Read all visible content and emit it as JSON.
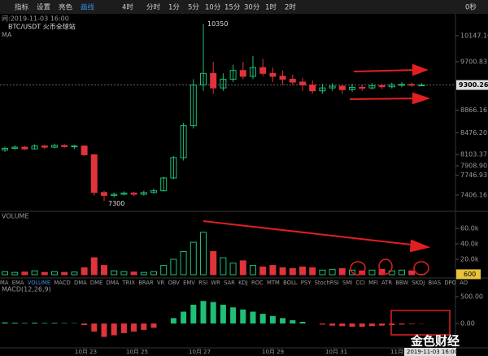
{
  "toolbar": {
    "items": [
      "指标",
      "设置",
      "亮色",
      "画线",
      "4时",
      "分时",
      "1分",
      "5分",
      "10分",
      "15分",
      "30分",
      "1时",
      "2时"
    ],
    "countdown": "0秒"
  },
  "info": {
    "time": "间:2019-11-03 16:00",
    "pair": "BTC/USDT 火币全球站",
    "ma": "MA",
    "volume": "VOLUME",
    "macd": "MACD(12,26,9)"
  },
  "tabs": [
    "MA",
    "EMA",
    "VOLUME",
    "MACD",
    "DMA",
    "DME",
    "DMA",
    "TRIX",
    "BRAR",
    "VR",
    "OBV",
    "EMV",
    "RSI",
    "WR",
    "SAR",
    "KDJ",
    "ROC",
    "MTM",
    "BOLL",
    "PSY",
    "StochRSI",
    "SMI",
    "CCI",
    "MFI",
    "ATR",
    "BBW",
    "SKDJ",
    "BIAS",
    "DPO",
    "AO"
  ],
  "dates": [
    "10月 23",
    "10月 25",
    "10月 27",
    "10月 29",
    "10月 31",
    "11月",
    "2019-11-03 16:00"
  ],
  "watermark": "金色财经",
  "chart_data": {
    "type": "candlestick",
    "up_color": "#1fbf75",
    "down_color": "#e0333a",
    "open": [
      8180,
      8210,
      8230,
      8200,
      8250,
      8230,
      8260,
      8240,
      8250,
      8100,
      7450,
      7400,
      7420,
      7440,
      7420,
      7450,
      7480,
      7700,
      8050,
      8600,
      9300,
      9500,
      9250,
      9400,
      9550,
      9450,
      9600,
      9500,
      9450,
      9400,
      9350,
      9300,
      9200,
      9250,
      9280,
      9220,
      9260,
      9250,
      9290,
      9270,
      9300,
      9310,
      9300
    ],
    "high": [
      8240,
      8260,
      8250,
      8280,
      8270,
      8290,
      8280,
      8270,
      8260,
      8110,
      7480,
      7450,
      7470,
      7460,
      7480,
      7520,
      7720,
      8080,
      8650,
      9400,
      10350,
      9700,
      9500,
      9650,
      9700,
      9800,
      9750,
      9600,
      9550,
      9480,
      9420,
      9380,
      9320,
      9330,
      9300,
      9320,
      9300,
      9330,
      9320,
      9340,
      9350,
      9340,
      9330
    ],
    "low": [
      8150,
      8190,
      8180,
      8190,
      8200,
      8210,
      8220,
      8200,
      8080,
      7400,
      7300,
      7370,
      7400,
      7390,
      7400,
      7430,
      7470,
      7680,
      8000,
      8550,
      9200,
      9150,
      9200,
      9350,
      9400,
      9400,
      9450,
      9350,
      9300,
      9300,
      9200,
      9150,
      9150,
      9200,
      9150,
      9180,
      9200,
      9220,
      9230,
      9240,
      9260,
      9270,
      9280
    ],
    "close": [
      8210,
      8230,
      8200,
      8250,
      8230,
      8260,
      8240,
      8250,
      8100,
      7450,
      7400,
      7420,
      7440,
      7420,
      7450,
      7480,
      7700,
      8050,
      8600,
      9300,
      9500,
      9250,
      9400,
      9550,
      9450,
      9600,
      9500,
      9450,
      9400,
      9350,
      9300,
      9200,
      9250,
      9280,
      9220,
      9260,
      9250,
      9290,
      9270,
      9300,
      9310,
      9300,
      9300
    ],
    "volume": [
      4000,
      3000,
      3500,
      5000,
      3000,
      4000,
      3000,
      3500,
      9000,
      22000,
      12000,
      5000,
      4000,
      3500,
      3000,
      4000,
      12000,
      20000,
      30000,
      42000,
      55000,
      30000,
      22000,
      15000,
      18000,
      12000,
      10000,
      12000,
      9000,
      8000,
      10000,
      9000,
      6000,
      7000,
      8000,
      6000,
      5000,
      6000,
      7000,
      5000,
      6000,
      5000,
      600
    ],
    "macd": [
      20,
      15,
      10,
      15,
      10,
      12,
      8,
      6,
      -30,
      -150,
      -250,
      -220,
      -180,
      -150,
      -120,
      -80,
      0,
      100,
      220,
      350,
      420,
      400,
      350,
      300,
      260,
      220,
      180,
      140,
      100,
      60,
      30,
      0,
      -20,
      -40,
      -50,
      -60,
      -60,
      -50,
      -40,
      -30,
      -20,
      -10,
      -5
    ],
    "ylim": [
      7154,
      10511
    ],
    "yticks": [
      10147.16,
      9700.83,
      8866.16,
      {
        "value": 8476.2,
        "label": "8476.20"
      },
      8103.37,
      {
        "value": 7908.9,
        "label": "7908.90"
      },
      7746.93,
      7406.16
    ],
    "last_price": 9300.26,
    "vol_ylim": [
      0,
      80000
    ],
    "vol_yticks": [
      {
        "value": 60000,
        "label": "60.0k"
      },
      {
        "value": 40000,
        "label": "40.0k"
      },
      {
        "value": 20000,
        "label": "20.0k"
      }
    ],
    "last_volume": 600,
    "macd_ylim": [
      -409,
      697
    ],
    "macd_yticks": [
      {
        "value": 500,
        "label": "500.00"
      },
      {
        "value": 0,
        "label": "0.00"
      }
    ]
  }
}
